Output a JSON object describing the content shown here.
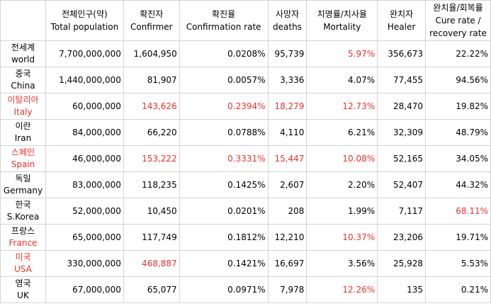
{
  "headers": [
    {
      "line1": "",
      "line2": ""
    },
    {
      "line1": "전체인구(약)",
      "line2": "Total population"
    },
    {
      "line1": "확진자",
      "line2": "Confirmer"
    },
    {
      "line1": "확진율",
      "line2": "Confirmation rate"
    },
    {
      "line1": "사망자",
      "line2": "deaths"
    },
    {
      "line1": "치명률/치사율",
      "line2": "Mortality"
    },
    {
      "line1": "완치자",
      "line2": "Healer"
    },
    {
      "line1": "완치율/회복률",
      "line2": "Cure rate /",
      "line3": "recovery rate"
    }
  ],
  "rows": [
    {
      "ko": "전세계",
      "en": "world",
      "population": "7,700,000,000",
      "confirmed": "1,604,950",
      "rate": "0.0208%",
      "deaths": "95,739",
      "mortality": "5.97%",
      "healed": "356,673",
      "cure": "22.22%"
    },
    {
      "ko": "중국",
      "en": "China",
      "population": "1,440,000,000",
      "confirmed": "81,907",
      "rate": "0.0057%",
      "deaths": "3,336",
      "mortality": "4.07%",
      "healed": "77,455",
      "cure": "94.56%"
    },
    {
      "ko": "이탈리아",
      "en": "Italy",
      "population": "60,000,000",
      "confirmed": "143,626",
      "rate": "0.2394%",
      "deaths": "18,279",
      "mortality": "12.73%",
      "healed": "28,470",
      "cure": "19.82%"
    },
    {
      "ko": "이란",
      "en": "Iran",
      "population": "84,000,000",
      "confirmed": "66,220",
      "rate": "0.0788%",
      "deaths": "4,110",
      "mortality": "6.21%",
      "healed": "32,309",
      "cure": "48.79%"
    },
    {
      "ko": "스페인",
      "en": "Spain",
      "population": "46,000,000",
      "confirmed": "153,222",
      "rate": "0.3331%",
      "deaths": "15,447",
      "mortality": "10.08%",
      "healed": "52,165",
      "cure": "34.05%"
    },
    {
      "ko": "독일",
      "en": "Germany",
      "population": "83,000,000",
      "confirmed": "118,235",
      "rate": "0.1425%",
      "deaths": "2,607",
      "mortality": "2.20%",
      "healed": "52,407",
      "cure": "44.32%"
    },
    {
      "ko": "한국",
      "en": "S.Korea",
      "population": "52,000,000",
      "confirmed": "10,450",
      "rate": "0.0201%",
      "deaths": "208",
      "mortality": "1.99%",
      "healed": "7,117",
      "cure": "68.11%"
    },
    {
      "ko": "프랑스",
      "en": "France",
      "population": "65,000,000",
      "confirmed": "117,749",
      "rate": "0.1812%",
      "deaths": "12,210",
      "mortality": "10.37%",
      "healed": "23,206",
      "cure": "19.71%"
    },
    {
      "ko": "미국",
      "en": "USA",
      "population": "330,000,000",
      "confirmed": "468,887",
      "rate": "0.1421%",
      "deaths": "16,697",
      "mortality": "3.56%",
      "healed": "25,928",
      "cure": "5.53%"
    },
    {
      "ko": "영국",
      "en": "UK",
      "population": "67,000,000",
      "confirmed": "65,077",
      "rate": "0.0971%",
      "deaths": "7,978",
      "mortality": "12.26%",
      "healed": "135",
      "cure": "0.21%"
    }
  ],
  "colors": {
    "highlight": "#e8312f",
    "gridline": "#d4d4d4"
  }
}
